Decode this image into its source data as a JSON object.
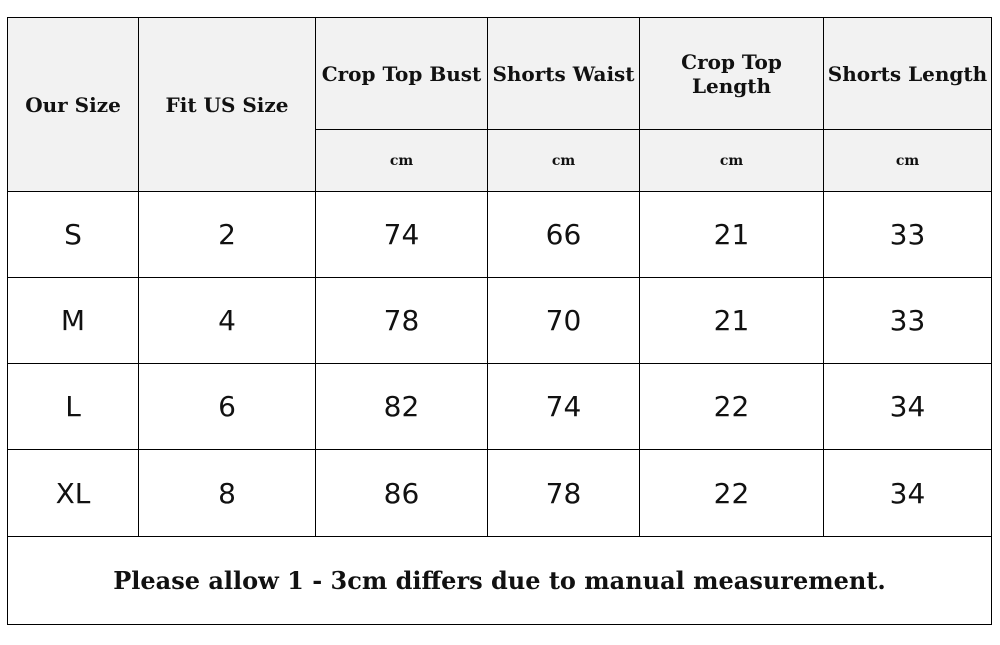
{
  "headers": [
    "Our Size",
    "Fit US Size",
    "Crop Top Bust",
    "Shorts Waist",
    "Crop Top Length",
    "Shorts Length"
  ],
  "unit": "cm",
  "rows": [
    [
      "S",
      "2",
      "74",
      "66",
      "21",
      "33"
    ],
    [
      "M",
      "4",
      "78",
      "70",
      "21",
      "33"
    ],
    [
      "L",
      "6",
      "82",
      "74",
      "22",
      "34"
    ],
    [
      "XL",
      "8",
      "86",
      "78",
      "22",
      "34"
    ]
  ],
  "note": "Please allow 1 - 3cm differs due to manual measurement."
}
